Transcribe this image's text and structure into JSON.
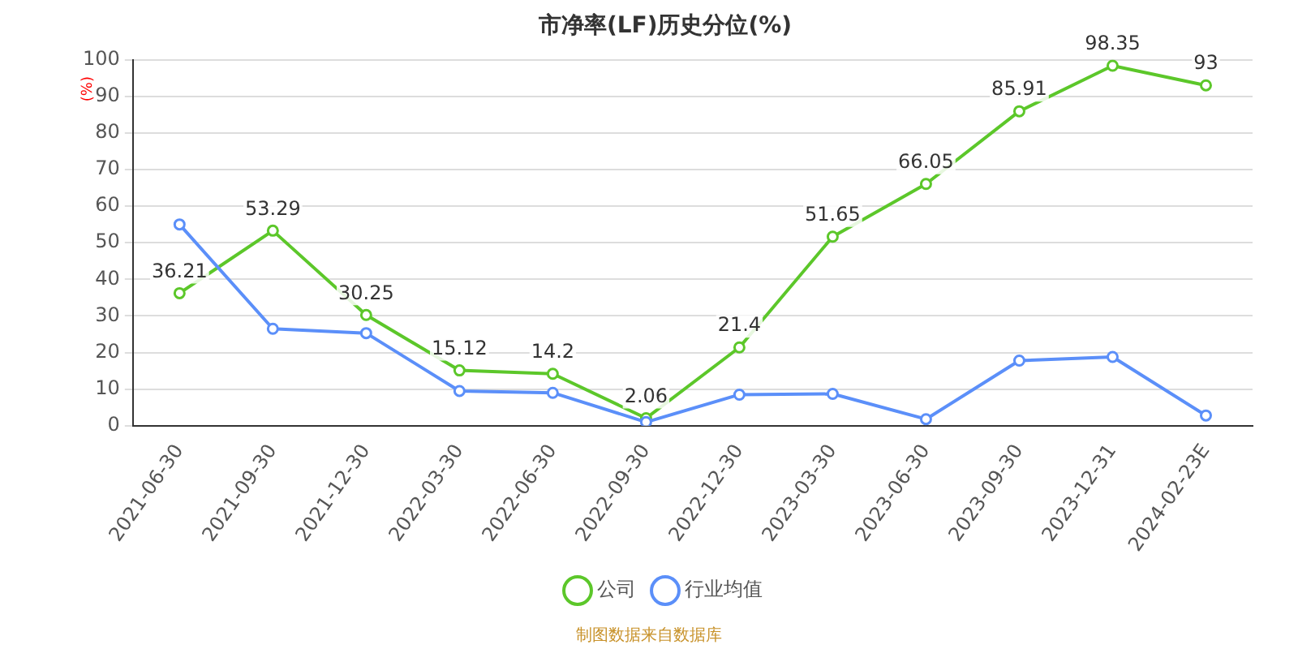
{
  "chart_data": {
    "type": "line",
    "title": "市净率(LF)历史分位(%)",
    "ylabel": "(%)",
    "categories": [
      "2021-06-30",
      "2021-09-30",
      "2021-12-30",
      "2022-03-30",
      "2022-06-30",
      "2022-09-30",
      "2022-12-30",
      "2023-03-30",
      "2023-06-30",
      "2023-09-30",
      "2023-12-31",
      "2024-02-23E"
    ],
    "series": [
      {
        "name": "公司",
        "color": "#5cc72a",
        "values": [
          36.21,
          53.29,
          30.25,
          15.12,
          14.2,
          2.06,
          21.4,
          51.65,
          66.05,
          85.91,
          98.35,
          93
        ],
        "value_labels": [
          "36.21",
          "53.29",
          "30.25",
          "15.12",
          "14.2",
          "2.06",
          "21.4",
          "51.65",
          "66.05",
          "85.91",
          "98.35",
          "93"
        ]
      },
      {
        "name": "行业均值",
        "color": "#5b8ff9",
        "values": [
          55,
          26.5,
          25.3,
          9.5,
          9,
          1,
          8.5,
          8.7,
          1.8,
          17.8,
          18.8,
          2.8
        ]
      }
    ],
    "ylim": [
      0,
      100
    ],
    "yticks": [
      0,
      10,
      20,
      30,
      40,
      50,
      60,
      70,
      80,
      90,
      100
    ],
    "grid": "y",
    "legend": "bottom",
    "marker": "circle",
    "line_style": "solid",
    "annotations": [
      "制图数据来自数据库"
    ]
  }
}
